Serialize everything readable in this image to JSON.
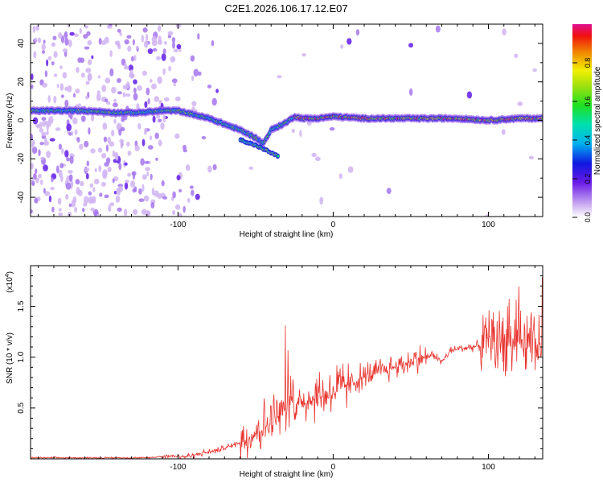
{
  "figure_title": "C2E1.2026.106.17.12.E07",
  "chart_data": [
    {
      "type": "heatmap",
      "title": "C2E1.2026.106.17.12.E07",
      "xlabel": "Height of straight line (km)",
      "ylabel": "Frequency (Hz)",
      "xlim": [
        -195,
        135
      ],
      "ylim": [
        -50,
        50
      ],
      "x_ticks": [
        -100,
        0,
        100
      ],
      "x_tick_labels": [
        "-100",
        "0",
        "100"
      ],
      "y_ticks": [
        -40,
        -20,
        0,
        20,
        40
      ],
      "y_tick_labels": [
        "-40",
        "-20",
        "0",
        "20",
        "40"
      ],
      "colorbar": {
        "label": "Normalized spectral amplitude",
        "range": [
          0,
          1
        ],
        "ticks": [
          0.0,
          0.2,
          0.4,
          0.6,
          0.8
        ],
        "tick_labels": [
          "0.0",
          "0.2",
          "0.4",
          "0.6",
          "0.8"
        ]
      },
      "ridge_series": [
        {
          "name": "main-ridge",
          "x": [
            -195,
            -160,
            -140,
            -125,
            -110,
            -100,
            -90,
            -80,
            -70,
            -60,
            -50,
            -45,
            -40,
            -35,
            -30,
            -25,
            -20,
            -10,
            0,
            20,
            40,
            60,
            80,
            100,
            120,
            135
          ],
          "y": [
            5,
            5,
            4,
            4,
            5,
            5,
            3,
            1,
            -2,
            -5,
            -9,
            -12,
            -5,
            -3,
            -1,
            2,
            1,
            1,
            2,
            1,
            1,
            1,
            1,
            0,
            1,
            1
          ]
        },
        {
          "name": "lower-branch",
          "x": [
            -60,
            -50,
            -42,
            -35
          ],
          "y": [
            -10,
            -13,
            -16,
            -19
          ]
        }
      ]
    },
    {
      "type": "line",
      "title": "",
      "xlabel": "Height of straight line (km)",
      "ylabel": "SNR (10 * v/v)",
      "y_scale_label": "(x10",
      "y_scale_exponent": "4",
      "xlim": [
        -195,
        135
      ],
      "ylim": [
        0,
        1.9
      ],
      "x_ticks": [
        -100,
        0,
        100
      ],
      "x_tick_labels": [
        "-100",
        "0",
        "100"
      ],
      "y_ticks": [
        0.5,
        1.0,
        1.5
      ],
      "y_tick_labels": [
        "0.5",
        "1.0",
        "1.5"
      ],
      "color": "#e8322c",
      "series": [
        {
          "name": "SNR envelope",
          "x": [
            -195,
            -150,
            -120,
            -105,
            -95,
            -85,
            -75,
            -65,
            -55,
            -45,
            -40,
            -30,
            -20,
            -10,
            0,
            10,
            20,
            30,
            40,
            50,
            60,
            65,
            70,
            75,
            80,
            90,
            100,
            110,
            120,
            130,
            135
          ],
          "y": [
            0.01,
            0.01,
            0.01,
            0.03,
            0.02,
            0.05,
            0.08,
            0.13,
            0.2,
            0.3,
            0.35,
            0.5,
            0.55,
            0.6,
            0.65,
            0.72,
            0.8,
            0.85,
            0.9,
            0.95,
            1.0,
            1.02,
            0.95,
            1.05,
            1.08,
            1.1,
            1.12,
            1.1,
            1.12,
            1.05,
            1.0
          ]
        }
      ]
    }
  ]
}
